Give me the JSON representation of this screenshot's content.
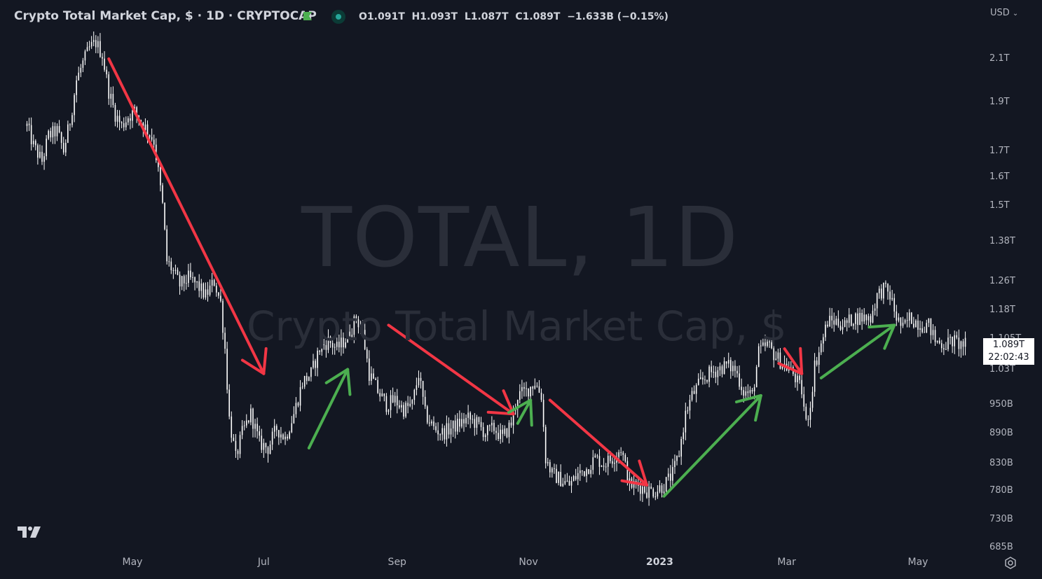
{
  "header": {
    "title": "Crypto Total Market Cap, $ · 1D · CRYPTOCAP",
    "ohlc": [
      {
        "k": "O",
        "v": "1.091T"
      },
      {
        "k": "H",
        "v": "1.093T"
      },
      {
        "k": "L",
        "v": "1.087T"
      },
      {
        "k": "C",
        "v": "1.089T"
      }
    ],
    "change": "−1.633B (−0.15%)",
    "currency": "USD"
  },
  "watermark": {
    "line1": "TOTAL, 1D",
    "line2": "Crypto Total Market Cap, $"
  },
  "price_label": {
    "value": "1.089T",
    "countdown": "22:02:43"
  },
  "colors": {
    "background": "#131722",
    "candles": "#ffffff",
    "down_arrow": "#f23645",
    "up_arrow": "#4caf50"
  },
  "icons": [
    "tradingview-logo-icon",
    "flag-icon",
    "market-status-icon",
    "settings-icon",
    "chevron-down-icon"
  ],
  "chart_data": {
    "type": "line",
    "scale": "log",
    "y_ticks": [
      "2.1T",
      "1.9T",
      "1.7T",
      "1.6T",
      "1.5T",
      "1.38T",
      "1.26T",
      "1.18T",
      "1.105T",
      "1.03T",
      "950B",
      "890B",
      "830B",
      "780B",
      "730B",
      "685B"
    ],
    "y_values": [
      2.1,
      1.9,
      1.7,
      1.6,
      1.5,
      1.38,
      1.26,
      1.18,
      1.105,
      1.03,
      0.95,
      0.89,
      0.83,
      0.78,
      0.73,
      0.685
    ],
    "x_ticks": [
      {
        "label": "May",
        "date": "2022-05-01"
      },
      {
        "label": "Jul",
        "date": "2022-07-01"
      },
      {
        "label": "Sep",
        "date": "2022-09-01"
      },
      {
        "label": "Nov",
        "date": "2022-11-01"
      },
      {
        "label": "2023",
        "date": "2023-01-01",
        "bold": true
      },
      {
        "label": "Mar",
        "date": "2023-03-01"
      },
      {
        "label": "May",
        "date": "2023-05-01"
      }
    ],
    "series": [
      {
        "points": [
          [
            "2022-03-13",
            1.8
          ],
          [
            "2022-03-16",
            1.72
          ],
          [
            "2022-03-20",
            1.66
          ],
          [
            "2022-03-23",
            1.76
          ],
          [
            "2022-03-27",
            1.78
          ],
          [
            "2022-03-30",
            1.7
          ],
          [
            "2022-04-02",
            1.82
          ],
          [
            "2022-04-05",
            2.0
          ],
          [
            "2022-04-08",
            2.08
          ],
          [
            "2022-04-11",
            2.15
          ],
          [
            "2022-04-14",
            2.18
          ],
          [
            "2022-04-17",
            2.12
          ],
          [
            "2022-04-20",
            1.95
          ],
          [
            "2022-04-23",
            1.85
          ],
          [
            "2022-04-26",
            1.8
          ],
          [
            "2022-04-29",
            1.84
          ],
          [
            "2022-05-02",
            1.86
          ],
          [
            "2022-05-05",
            1.82
          ],
          [
            "2022-05-08",
            1.78
          ],
          [
            "2022-05-11",
            1.74
          ],
          [
            "2022-05-13",
            1.62
          ],
          [
            "2022-05-15",
            1.5
          ],
          [
            "2022-05-17",
            1.32
          ],
          [
            "2022-05-19",
            1.3
          ],
          [
            "2022-05-23",
            1.25
          ],
          [
            "2022-05-27",
            1.27
          ],
          [
            "2022-05-31",
            1.25
          ],
          [
            "2022-06-04",
            1.22
          ],
          [
            "2022-06-08",
            1.26
          ],
          [
            "2022-06-11",
            1.2
          ],
          [
            "2022-06-13",
            1.08
          ],
          [
            "2022-06-15",
            0.92
          ],
          [
            "2022-06-18",
            0.84
          ],
          [
            "2022-06-21",
            0.89
          ],
          [
            "2022-06-25",
            0.93
          ],
          [
            "2022-06-29",
            0.87
          ],
          [
            "2022-07-03",
            0.86
          ],
          [
            "2022-07-07",
            0.9
          ],
          [
            "2022-07-11",
            0.88
          ],
          [
            "2022-07-15",
            0.93
          ],
          [
            "2022-07-19",
            1.0
          ],
          [
            "2022-07-23",
            1.02
          ],
          [
            "2022-07-27",
            1.08
          ],
          [
            "2022-07-31",
            1.1
          ],
          [
            "2022-08-04",
            1.08
          ],
          [
            "2022-08-09",
            1.11
          ],
          [
            "2022-08-13",
            1.16
          ],
          [
            "2022-08-16",
            1.12
          ],
          [
            "2022-08-19",
            1.02
          ],
          [
            "2022-08-23",
            0.98
          ],
          [
            "2022-08-27",
            0.95
          ],
          [
            "2022-08-31",
            0.96
          ],
          [
            "2022-09-04",
            0.94
          ],
          [
            "2022-09-08",
            0.95
          ],
          [
            "2022-09-11",
            1.02
          ],
          [
            "2022-09-14",
            0.93
          ],
          [
            "2022-09-18",
            0.9
          ],
          [
            "2022-09-22",
            0.89
          ],
          [
            "2022-09-26",
            0.9
          ],
          [
            "2022-09-30",
            0.91
          ],
          [
            "2022-10-04",
            0.92
          ],
          [
            "2022-10-08",
            0.91
          ],
          [
            "2022-10-12",
            0.89
          ],
          [
            "2022-10-16",
            0.9
          ],
          [
            "2022-10-20",
            0.88
          ],
          [
            "2022-10-24",
            0.91
          ],
          [
            "2022-10-27",
            0.97
          ],
          [
            "2022-10-31",
            0.98
          ],
          [
            "2022-11-04",
            1.0
          ],
          [
            "2022-11-07",
            0.97
          ],
          [
            "2022-11-09",
            0.84
          ],
          [
            "2022-11-12",
            0.81
          ],
          [
            "2022-11-16",
            0.8
          ],
          [
            "2022-11-20",
            0.79
          ],
          [
            "2022-11-24",
            0.81
          ],
          [
            "2022-11-28",
            0.82
          ],
          [
            "2022-12-02",
            0.84
          ],
          [
            "2022-12-06",
            0.83
          ],
          [
            "2022-12-10",
            0.84
          ],
          [
            "2022-12-14",
            0.86
          ],
          [
            "2022-12-18",
            0.79
          ],
          [
            "2022-12-22",
            0.79
          ],
          [
            "2022-12-26",
            0.78
          ],
          [
            "2022-12-30",
            0.78
          ],
          [
            "2023-01-03",
            0.79
          ],
          [
            "2023-01-07",
            0.81
          ],
          [
            "2023-01-10",
            0.85
          ],
          [
            "2023-01-13",
            0.93
          ],
          [
            "2023-01-16",
            0.97
          ],
          [
            "2023-01-20",
            1.0
          ],
          [
            "2023-01-24",
            1.02
          ],
          [
            "2023-01-28",
            1.03
          ],
          [
            "2023-02-01",
            1.04
          ],
          [
            "2023-02-05",
            1.03
          ],
          [
            "2023-02-09",
            0.98
          ],
          [
            "2023-02-13",
            0.97
          ],
          [
            "2023-02-16",
            1.07
          ],
          [
            "2023-02-20",
            1.09
          ],
          [
            "2023-02-24",
            1.06
          ],
          [
            "2023-02-28",
            1.04
          ],
          [
            "2023-03-04",
            1.02
          ],
          [
            "2023-03-08",
            0.98
          ],
          [
            "2023-03-10",
            0.91
          ],
          [
            "2023-03-12",
            0.95
          ],
          [
            "2023-03-14",
            1.04
          ],
          [
            "2023-03-17",
            1.09
          ],
          [
            "2023-03-20",
            1.15
          ],
          [
            "2023-03-24",
            1.15
          ],
          [
            "2023-03-28",
            1.14
          ],
          [
            "2023-04-01",
            1.16
          ],
          [
            "2023-04-05",
            1.16
          ],
          [
            "2023-04-09",
            1.16
          ],
          [
            "2023-04-12",
            1.22
          ],
          [
            "2023-04-15",
            1.24
          ],
          [
            "2023-04-18",
            1.22
          ],
          [
            "2023-04-21",
            1.16
          ],
          [
            "2023-04-24",
            1.13
          ],
          [
            "2023-04-27",
            1.16
          ],
          [
            "2023-04-30",
            1.15
          ],
          [
            "2023-05-03",
            1.14
          ],
          [
            "2023-05-06",
            1.14
          ],
          [
            "2023-05-09",
            1.1
          ],
          [
            "2023-05-13",
            1.09
          ],
          [
            "2023-05-17",
            1.1
          ],
          [
            "2023-05-21",
            1.09
          ],
          [
            "2023-05-24",
            1.089
          ]
        ]
      }
    ],
    "annotations": [
      {
        "type": "arrow",
        "color": "red",
        "from": [
          "2022-04-20",
          2.1
        ],
        "to": [
          "2022-07-01",
          1.02
        ]
      },
      {
        "type": "arrow",
        "color": "green",
        "from": [
          "2022-07-22",
          0.86
        ],
        "to": [
          "2022-08-09",
          1.03
        ]
      },
      {
        "type": "arrow",
        "color": "red",
        "from": [
          "2022-08-28",
          1.14
        ],
        "to": [
          "2022-10-25",
          0.93
        ]
      },
      {
        "type": "arrow",
        "color": "green",
        "from": [
          "2022-10-27",
          0.91
        ],
        "to": [
          "2022-11-02",
          0.96
        ]
      },
      {
        "type": "arrow",
        "color": "red",
        "from": [
          "2022-11-11",
          0.96
        ],
        "to": [
          "2022-12-26",
          0.79
        ]
      },
      {
        "type": "arrow",
        "color": "green",
        "from": [
          "2023-01-03",
          0.77
        ],
        "to": [
          "2023-02-17",
          0.97
        ]
      },
      {
        "type": "arrow",
        "color": "red",
        "from": [
          "2023-02-28",
          1.08
        ],
        "to": [
          "2023-03-08",
          1.02
        ]
      },
      {
        "type": "arrow",
        "color": "green",
        "from": [
          "2023-03-17",
          1.01
        ],
        "to": [
          "2023-04-20",
          1.14
        ]
      }
    ]
  }
}
